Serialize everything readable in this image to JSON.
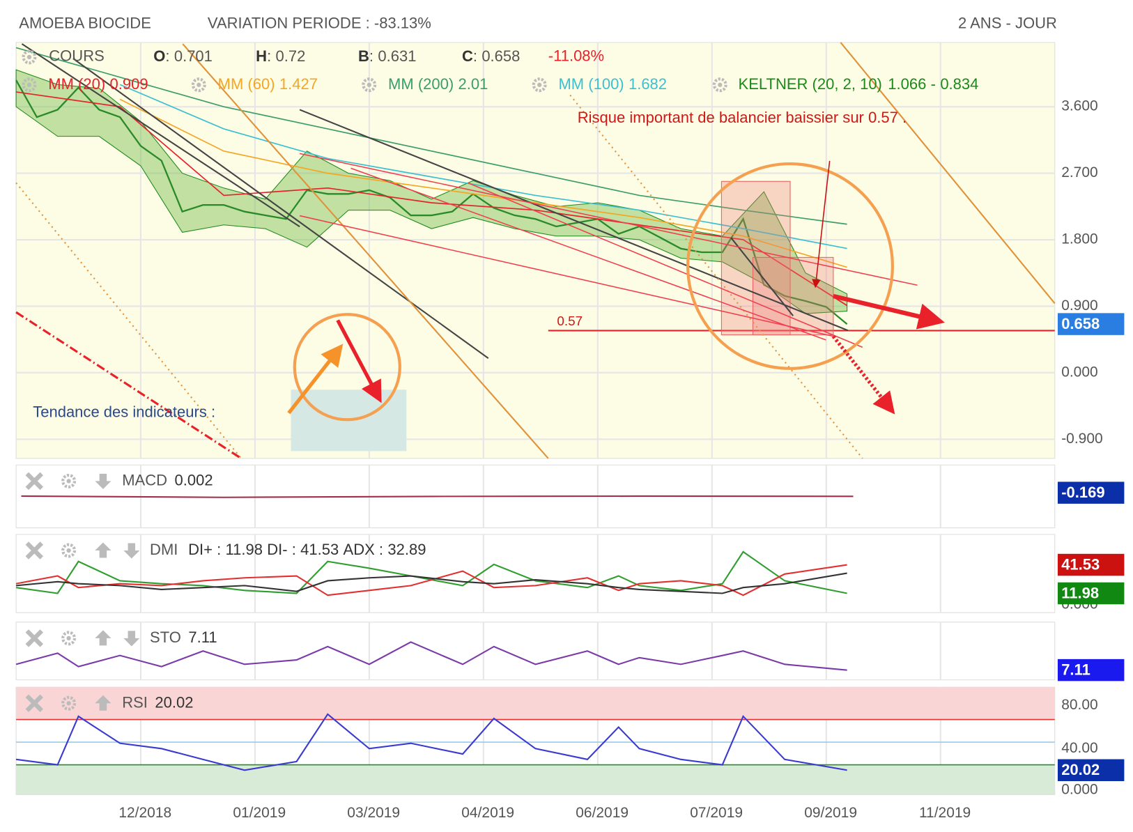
{
  "chart_data": [
    {
      "type": "line",
      "title": "AMOEBA BIOCIDE",
      "subtitle": "VARIATION PERIODE : -83.13%",
      "period": "2 ANS - JOUR",
      "ohlc": [
        {
          "label": "O",
          "value": 0.701
        },
        {
          "label": "H",
          "value": 0.72
        },
        {
          "label": "B",
          "value": 0.631
        },
        {
          "label": "C",
          "value": 0.658
        }
      ],
      "change": "-11.08%",
      "xlim": [
        0,
        100
      ],
      "xticks": [
        {
          "value": 12,
          "label": "12/2018"
        },
        {
          "value": 23,
          "label": "01/2019"
        },
        {
          "value": 34,
          "label": "03/2019"
        },
        {
          "value": 45,
          "label": "04/2019"
        },
        {
          "value": 56,
          "label": "06/2019"
        },
        {
          "value": 67,
          "label": "07/2019"
        },
        {
          "value": 78,
          "label": "09/2019"
        },
        {
          "value": 89,
          "label": "11/2019"
        }
      ],
      "ylim": [
        -1.16,
        4.47
      ],
      "yticks": [
        {
          "value": 3.6,
          "label": "3.600"
        },
        {
          "value": 2.7,
          "label": "2.700"
        },
        {
          "value": 1.8,
          "label": "1.800"
        },
        {
          "value": 0.9,
          "label": "0.900"
        },
        {
          "value": 0,
          "label": "0.000"
        },
        {
          "value": -0.9,
          "label": "-0.900"
        }
      ],
      "grid": true,
      "support": 0.57,
      "annotations": [
        "Risque important de balancier baissier sur 0.57 .",
        "Tendance des indicateurs :"
      ],
      "series": [
        {
          "name": "COURS",
          "color": "#2a8a2a",
          "x": [
            0,
            2,
            4,
            6,
            8,
            10,
            12,
            14,
            16,
            18,
            20,
            22,
            24,
            26,
            28,
            30,
            32,
            34,
            36,
            38,
            40,
            42,
            44,
            46,
            48,
            50,
            52,
            54,
            56,
            58,
            60,
            62,
            64,
            66,
            68,
            70,
            72,
            74,
            76,
            78,
            80
          ],
          "values": [
            3.96,
            3.46,
            3.56,
            3.86,
            3.56,
            3.46,
            3.07,
            2.87,
            2.18,
            2.27,
            2.27,
            2.18,
            2.13,
            2.08,
            2.47,
            2.42,
            2.42,
            2.47,
            2.37,
            2.13,
            2.13,
            2.18,
            2.42,
            2.23,
            2.13,
            2.08,
            1.98,
            2.03,
            2.08,
            1.88,
            1.98,
            1.83,
            1.68,
            1.63,
            1.63,
            2.08,
            1.19,
            1.04,
            0.97,
            0.89,
            0.658
          ]
        },
        {
          "name": "MM (20)",
          "color": "#e8212a",
          "x": [
            0,
            10,
            20,
            30,
            40,
            50,
            60,
            70,
            80
          ],
          "values": [
            3.8,
            3.6,
            2.4,
            2.5,
            2.3,
            2.2,
            2.0,
            1.8,
            0.909
          ]
        },
        {
          "name": "MM (60)",
          "color": "#f5a623",
          "x": [
            0,
            10,
            20,
            30,
            40,
            50,
            60,
            70,
            80
          ],
          "values": [
            null,
            3.7,
            3.0,
            2.7,
            2.5,
            2.3,
            2.1,
            1.85,
            1.427
          ]
        },
        {
          "name": "MM (200)",
          "color": "#3a9e6a",
          "x": [
            0,
            10,
            20,
            30,
            40,
            50,
            60,
            70,
            80
          ],
          "values": [
            4.4,
            4.0,
            3.6,
            3.3,
            3.0,
            2.7,
            2.4,
            2.2,
            2.01
          ]
        },
        {
          "name": "MM (100)",
          "color": "#3cc0d0",
          "x": [
            0,
            10,
            20,
            30,
            40,
            50,
            60,
            70,
            80
          ],
          "values": [
            null,
            3.9,
            3.3,
            2.9,
            2.65,
            2.4,
            2.2,
            1.95,
            1.682
          ]
        }
      ],
      "keltner": {
        "name": "KELTNER (20, 2, 10)",
        "color": "#1b8a1b",
        "x": [
          0,
          4,
          8,
          12,
          16,
          20,
          24,
          28,
          32,
          36,
          40,
          44,
          48,
          52,
          56,
          60,
          64,
          68,
          72,
          76,
          80
        ],
        "upper": [
          4.1,
          3.9,
          3.85,
          3.4,
          2.7,
          2.5,
          2.35,
          3.0,
          2.7,
          2.6,
          2.35,
          2.6,
          2.4,
          2.25,
          2.3,
          2.2,
          1.95,
          1.85,
          2.45,
          1.35,
          1.066
        ],
        "lower": [
          3.6,
          3.2,
          3.2,
          2.8,
          1.9,
          2.0,
          1.95,
          1.7,
          2.2,
          2.2,
          1.95,
          2.1,
          1.95,
          1.85,
          1.85,
          1.8,
          1.55,
          1.5,
          1.2,
          0.8,
          0.834
        ]
      }
    },
    {
      "type": "line",
      "title": "MACD",
      "value": 0.002,
      "badge": -0.169,
      "ylim": [
        -1,
        1
      ],
      "x": [
        0.5,
        20,
        40,
        60,
        80.6
      ],
      "series": [
        {
          "color": "#a0304a",
          "values": [
            0.01,
            -0.03,
            0.0,
            0.01,
            0.002
          ]
        }
      ]
    },
    {
      "type": "line",
      "title": "DMI",
      "ylim": [
        -8,
        73
      ],
      "yticks": [
        {
          "value": 0,
          "label": "0.000"
        }
      ],
      "x": [
        0,
        4,
        6,
        10,
        14,
        18,
        22,
        27,
        30,
        34,
        38,
        43,
        46,
        50,
        55,
        58,
        60,
        64,
        68,
        70,
        74,
        80
      ],
      "series": [
        {
          "name": "DI+ :",
          "color": "#2f9e2f",
          "values": [
            18,
            12,
            45,
            25,
            22,
            20,
            15,
            12,
            45,
            38,
            30,
            20,
            42,
            25,
            18,
            30,
            20,
            15,
            22,
            55,
            25,
            11.98
          ]
        },
        {
          "name": "DI- :",
          "color": "#e23030",
          "values": [
            22,
            30,
            18,
            22,
            20,
            25,
            28,
            30,
            10,
            15,
            20,
            35,
            18,
            20,
            28,
            15,
            22,
            25,
            20,
            10,
            32,
            41.53
          ]
        },
        {
          "name": "ADX :",
          "color": "#333333",
          "values": [
            20,
            24,
            22,
            20,
            16,
            18,
            20,
            14,
            25,
            28,
            30,
            24,
            22,
            26,
            22,
            18,
            16,
            14,
            12,
            18,
            22,
            32.89
          ]
        }
      ]
    },
    {
      "type": "line",
      "title": "STO",
      "ylim": [
        -15,
        115
      ],
      "x": [
        0,
        4,
        6,
        10,
        14,
        18,
        22,
        27,
        30,
        34,
        38,
        43,
        46,
        50,
        55,
        58,
        60,
        64,
        68,
        70,
        74,
        80
      ],
      "series": [
        {
          "color": "#7a3aa8",
          "values": [
            20,
            45,
            15,
            40,
            15,
            50,
            20,
            30,
            60,
            20,
            70,
            20,
            60,
            20,
            50,
            20,
            35,
            20,
            40,
            50,
            20,
            7.11
          ]
        }
      ]
    },
    {
      "type": "line",
      "title": "RSI",
      "ylim": [
        -2.7,
        97
      ],
      "yticks": [
        {
          "value": 80,
          "label": "80.00"
        },
        {
          "value": 40,
          "label": "40.00"
        },
        {
          "value": 0,
          "label": "0.000"
        }
      ],
      "levels": [
        67,
        46,
        25
      ],
      "x": [
        0,
        4,
        6,
        10,
        14,
        18,
        22,
        27,
        30,
        34,
        38,
        43,
        46,
        50,
        55,
        58,
        60,
        64,
        68,
        70,
        74,
        80
      ],
      "series": [
        {
          "color": "#3a3ad0",
          "values": [
            30,
            25,
            70,
            45,
            40,
            30,
            20,
            28,
            72,
            40,
            45,
            35,
            68,
            40,
            30,
            60,
            40,
            30,
            25,
            70,
            30,
            20.02
          ]
        }
      ]
    }
  ]
}
